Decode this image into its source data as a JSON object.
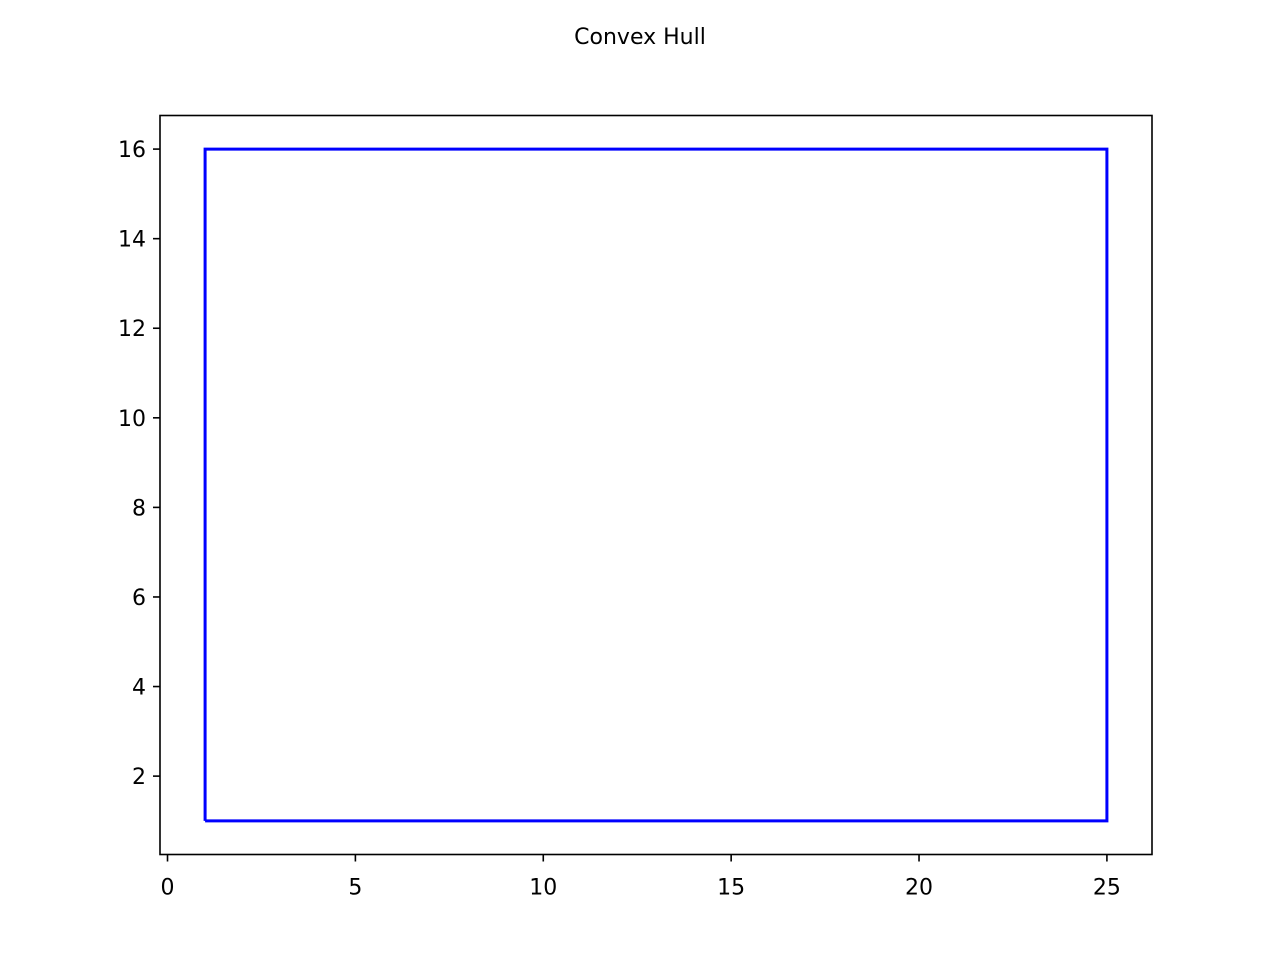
{
  "chart_data": {
    "type": "line",
    "title": "Convex Hull",
    "xlabel": "",
    "ylabel": "",
    "xlim": [
      -0.2,
      26.2
    ],
    "ylim": [
      0.25,
      16.75
    ],
    "xticks": [
      0,
      5,
      10,
      15,
      20,
      25
    ],
    "yticks": [
      2,
      4,
      6,
      8,
      10,
      12,
      14,
      16
    ],
    "xtick_labels": [
      "0",
      "5",
      "10",
      "15",
      "20",
      "25"
    ],
    "ytick_labels": [
      "2",
      "4",
      "6",
      "8",
      "10",
      "12",
      "14",
      "16"
    ],
    "grid": false,
    "series": [
      {
        "color": "#0000ff",
        "x": [
          1,
          25,
          25,
          1,
          1
        ],
        "y": [
          1,
          1,
          16,
          16,
          1
        ]
      }
    ]
  }
}
